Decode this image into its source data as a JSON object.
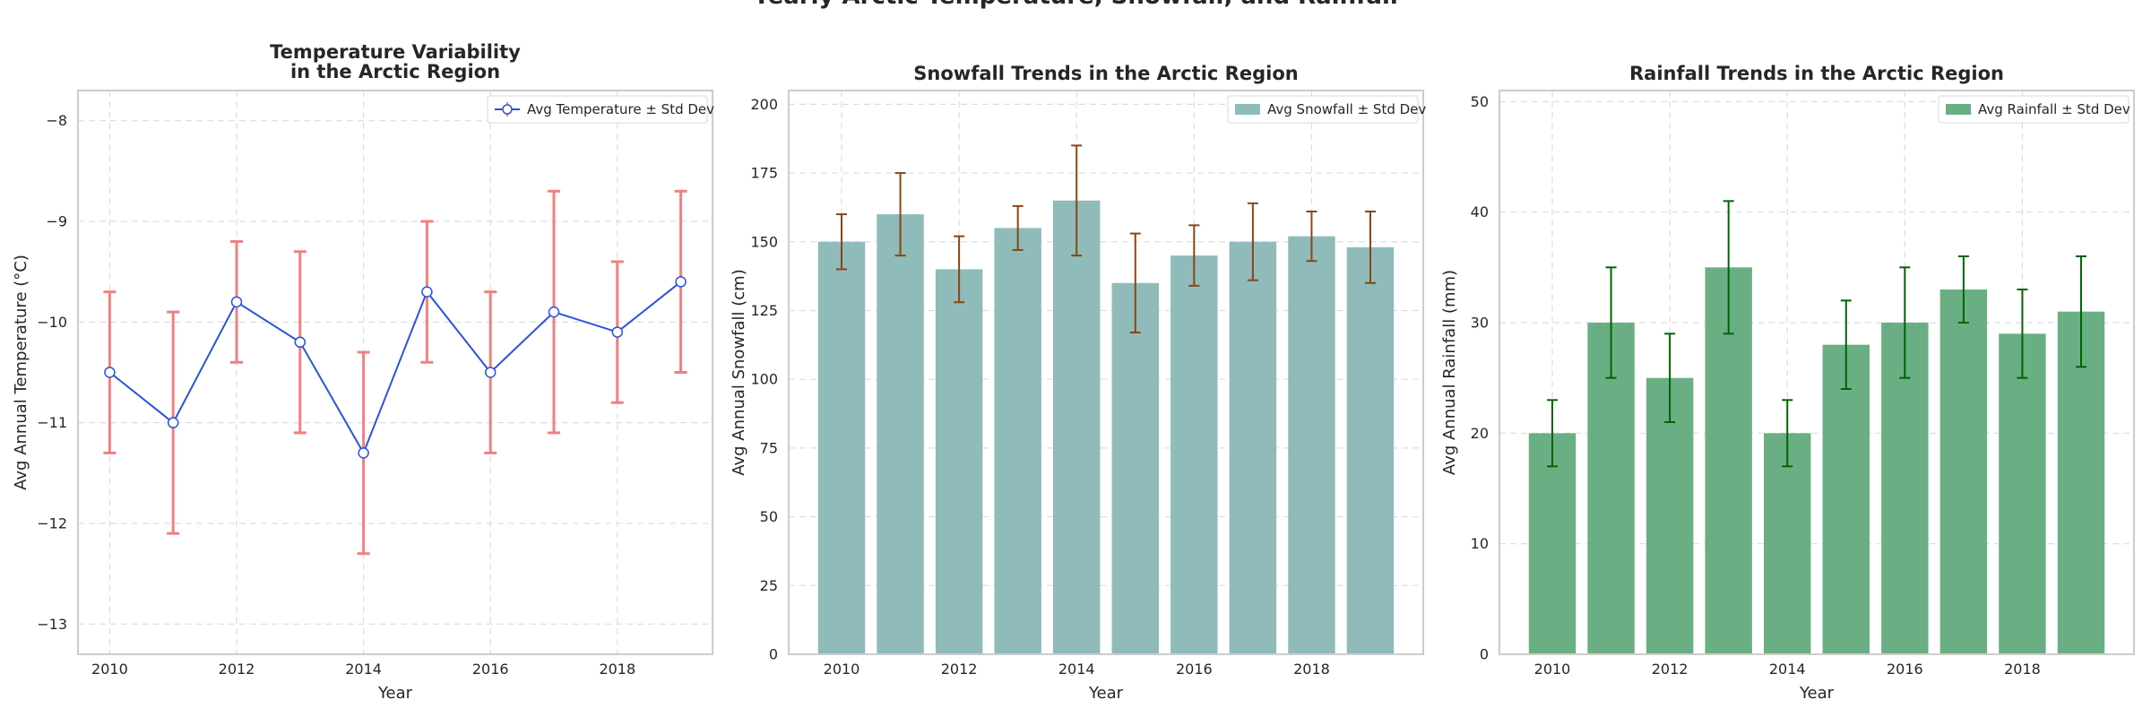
{
  "figure": {
    "title": "Yearly Arctic Temperature, Snowfall, and Rainfall"
  },
  "chart_data": [
    {
      "type": "line",
      "title": "Temperature Variability\nin the Arctic Region",
      "xlabel": "Year",
      "ylabel": "Avg Annual Temperature (°C)",
      "x": [
        2010,
        2011,
        2012,
        2013,
        2014,
        2015,
        2016,
        2017,
        2018,
        2019
      ],
      "xlim": [
        2009.5,
        2019.5
      ],
      "xticks": [
        2010,
        2012,
        2014,
        2016,
        2018
      ],
      "ylim": [
        -13.3,
        -7.7
      ],
      "yticks": [
        -13,
        -12,
        -11,
        -10,
        -9,
        -8
      ],
      "series": [
        {
          "name": "Avg Temperature ± Std Dev",
          "values": [
            -10.5,
            -11.0,
            -9.8,
            -10.2,
            -11.3,
            -9.7,
            -10.5,
            -9.9,
            -10.1,
            -9.6
          ],
          "error": [
            0.8,
            1.1,
            0.6,
            0.9,
            1.0,
            0.7,
            0.8,
            1.2,
            0.7,
            0.9
          ],
          "color": "#2a52e0",
          "error_color": "#f08080"
        }
      ],
      "grid": true,
      "legend": "upper-right"
    },
    {
      "type": "bar",
      "title": "Snowfall Trends in the Arctic Region",
      "xlabel": "Year",
      "ylabel": "Avg Annual Snowfall (cm)",
      "x": [
        2010,
        2011,
        2012,
        2013,
        2014,
        2015,
        2016,
        2017,
        2018,
        2019
      ],
      "xlim": [
        2009.1,
        2019.9
      ],
      "xticks": [
        2010,
        2012,
        2014,
        2016,
        2018
      ],
      "ylim": [
        0,
        205
      ],
      "yticks": [
        0,
        25,
        50,
        75,
        100,
        125,
        150,
        175,
        200
      ],
      "series": [
        {
          "name": "Avg Snowfall ± Std Dev",
          "values": [
            150,
            160,
            140,
            155,
            165,
            135,
            145,
            150,
            152,
            148
          ],
          "error": [
            10,
            15,
            12,
            8,
            20,
            18,
            11,
            14,
            9,
            13
          ],
          "color": "#8fbbbb",
          "error_color": "#8b4513"
        }
      ],
      "grid": true,
      "legend": "upper-right"
    },
    {
      "type": "bar",
      "title": "Rainfall Trends in the Arctic Region",
      "xlabel": "Year",
      "ylabel": "Avg Annual Rainfall (mm)",
      "x": [
        2010,
        2011,
        2012,
        2013,
        2014,
        2015,
        2016,
        2017,
        2018,
        2019
      ],
      "xlim": [
        2009.1,
        2019.9
      ],
      "xticks": [
        2010,
        2012,
        2014,
        2016,
        2018
      ],
      "ylim": [
        0,
        51
      ],
      "yticks": [
        0,
        10,
        20,
        30,
        40,
        50
      ],
      "series": [
        {
          "name": "Avg Rainfall ± Std Dev",
          "values": [
            20,
            30,
            25,
            35,
            20,
            28,
            30,
            33,
            29,
            31
          ],
          "error": [
            3,
            5,
            4,
            6,
            3,
            4,
            5,
            3,
            4,
            5
          ],
          "color": "#6aaf84",
          "error_color": "#006400"
        }
      ],
      "grid": true,
      "legend": "upper-right"
    }
  ]
}
